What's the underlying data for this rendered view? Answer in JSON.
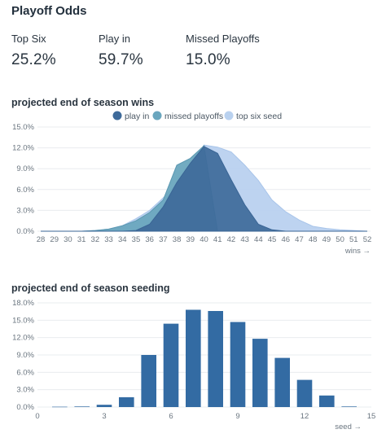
{
  "header": {
    "title": "Playoff Odds"
  },
  "stats": [
    {
      "label": "Top Six",
      "value": "25.2%"
    },
    {
      "label": "Play in",
      "value": "59.7%"
    },
    {
      "label": "Missed Playoffs",
      "value": "15.0%"
    }
  ],
  "colors": {
    "top_six": "#b9d1ef",
    "missed": "#6aa6be",
    "play_in": "#3e6a9a",
    "bar": "#336ba3",
    "grid": "#e9ecef"
  },
  "chart_data": [
    {
      "type": "area",
      "title": "projected end of season wins",
      "xlabel": "wins →",
      "ylabel": "",
      "x": [
        28,
        29,
        30,
        31,
        32,
        33,
        34,
        35,
        36,
        37,
        38,
        39,
        40,
        41,
        42,
        43,
        44,
        45,
        46,
        47,
        48,
        49,
        50,
        51,
        52
      ],
      "ylim": [
        0,
        15
      ],
      "yticks": [
        "0.0%",
        "3.0%",
        "6.0%",
        "9.0%",
        "12.0%",
        "15.0%"
      ],
      "legend_position": "top",
      "series": [
        {
          "name": "play in",
          "values": [
            0,
            0,
            0,
            0,
            0,
            0,
            0,
            0.1,
            1.0,
            3.5,
            7.0,
            9.8,
            12.2,
            11.2,
            7.4,
            3.8,
            1.0,
            0.2,
            0,
            0,
            0,
            0,
            0,
            0,
            0
          ]
        },
        {
          "name": "missed playoffs",
          "values": [
            0,
            0,
            0,
            0,
            0.1,
            0.3,
            0.8,
            1.5,
            2.7,
            4.5,
            9.5,
            10.5,
            12.3,
            0,
            0,
            0,
            0,
            0,
            0,
            0,
            0,
            0,
            0,
            0,
            0
          ]
        },
        {
          "name": "top six seed",
          "values": [
            0,
            0,
            0,
            0,
            0.1,
            0.3,
            0.8,
            1.8,
            3.0,
            4.8,
            6.8,
            9.0,
            12.4,
            12.1,
            11.4,
            9.5,
            7.3,
            4.5,
            2.8,
            1.6,
            0.7,
            0.4,
            0.2,
            0.1,
            0
          ]
        }
      ]
    },
    {
      "type": "bar",
      "title": "projected end of season seeding",
      "xlabel": "seed →",
      "ylabel": "",
      "categories": [
        1,
        2,
        3,
        4,
        5,
        6,
        7,
        8,
        9,
        10,
        11,
        12,
        13,
        14
      ],
      "values": [
        0.05,
        0.1,
        0.4,
        1.7,
        9.0,
        14.4,
        16.8,
        16.6,
        14.7,
        11.8,
        8.5,
        4.7,
        2.0,
        0.1
      ],
      "xticks": [
        0,
        3,
        6,
        9,
        12,
        15
      ],
      "ylim": [
        0,
        18
      ],
      "yticks": [
        "0.0%",
        "3.0%",
        "6.0%",
        "9.0%",
        "12.0%",
        "15.0%",
        "18.0%"
      ]
    }
  ]
}
